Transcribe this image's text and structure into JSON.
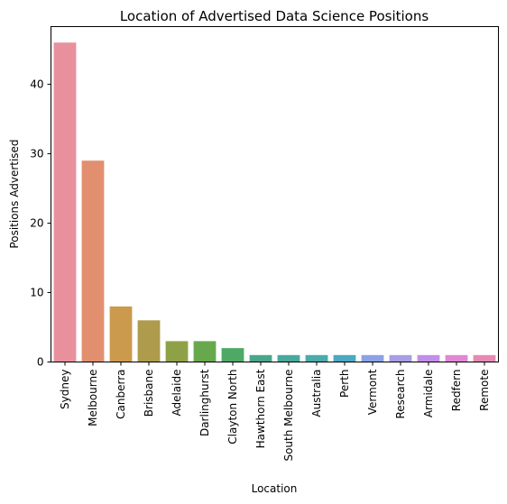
{
  "chart_data": {
    "type": "bar",
    "title": "Location of Advertised Data Science Positions",
    "xlabel": "Location",
    "ylabel": "Positions Advertised",
    "categories": [
      "Sydney",
      "Melbourne",
      "Canberra",
      "Brisbane",
      "Adelaide",
      "Darlinghurst",
      "Clayton North",
      "Hawthorn East",
      "South Melbourne",
      "Australia",
      "Perth",
      "Vermont",
      "Research",
      "Armidale",
      "Redfern",
      "Remote"
    ],
    "values": [
      46,
      29,
      8,
      6,
      3,
      3,
      2,
      1,
      1,
      1,
      1,
      1,
      1,
      1,
      1,
      1
    ],
    "ylim": [
      0,
      48.3
    ],
    "yticks": [
      0,
      10,
      20,
      30,
      40
    ],
    "grid": false,
    "legend": "none",
    "colors": [
      "#e8919d",
      "#e28f6f",
      "#cc9a4c",
      "#ae9b4b",
      "#8fa146",
      "#67a84c",
      "#4ea967",
      "#4aa68b",
      "#49a99e",
      "#4caaa9",
      "#4da8c2",
      "#8aa3e6",
      "#a79ee6",
      "#c28ee8",
      "#e287d5",
      "#e58ab3"
    ]
  }
}
